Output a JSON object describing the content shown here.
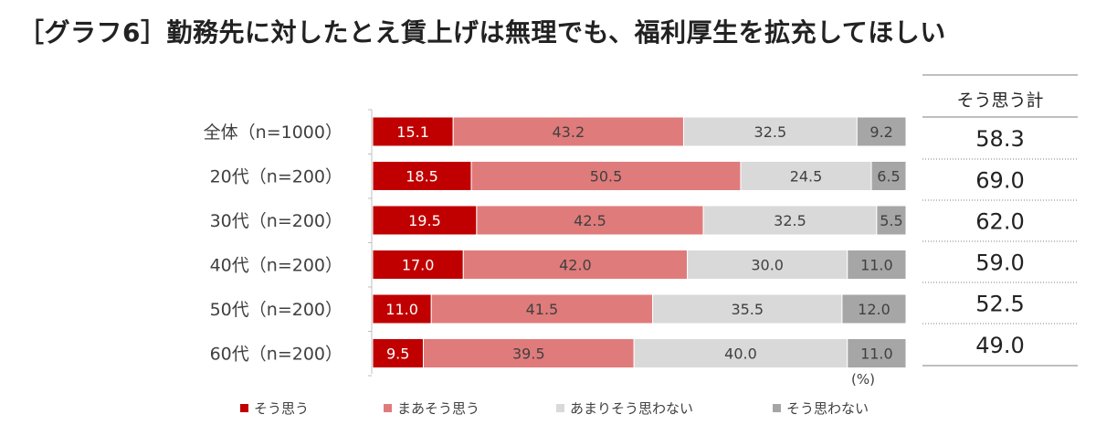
{
  "title": "［グラフ6］勤務先に対したとえ賃上げは無理でも、福利厚生を拡充してほしい",
  "chart_data": {
    "type": "bar",
    "orientation": "horizontal",
    "stacked": true,
    "normalized_percent": true,
    "categories": [
      "全体（n=1000）",
      "20代（n=200）",
      "30代（n=200）",
      "40代（n=200）",
      "50代（n=200）",
      "60代（n=200）"
    ],
    "series": [
      {
        "name": "そう思う",
        "color": "#c00000",
        "label_color": "#ffffff",
        "values": [
          15.1,
          18.5,
          19.5,
          17.0,
          11.0,
          9.5
        ]
      },
      {
        "name": "まあそう思う",
        "color": "#e07b7b",
        "label_color": "#404040",
        "values": [
          43.2,
          50.5,
          42.5,
          42.0,
          41.5,
          39.5
        ]
      },
      {
        "name": "あまりそう思わない",
        "color": "#d9d9d9",
        "label_color": "#404040",
        "values": [
          32.5,
          24.5,
          32.5,
          30.0,
          35.5,
          40.0
        ]
      },
      {
        "name": "そう思わない",
        "color": "#a6a6a6",
        "label_color": "#404040",
        "values": [
          9.2,
          6.5,
          5.5,
          11.0,
          12.0,
          11.0
        ]
      }
    ],
    "value_labels": [
      [
        "15.1",
        "43.2",
        "32.5",
        "9.2"
      ],
      [
        "18.5",
        "50.5",
        "24.5",
        "6.5"
      ],
      [
        "19.5",
        "42.5",
        "32.5",
        "5.5"
      ],
      [
        "17.0",
        "42.0",
        "30.0",
        "11.0"
      ],
      [
        "11.0",
        "41.5",
        "35.5",
        "12.0"
      ],
      [
        "9.5",
        "39.5",
        "40.0",
        "11.0"
      ]
    ],
    "unit_label": "(%)",
    "xlim": [
      0,
      100
    ],
    "totals": {
      "header": "そう思う計",
      "values": [
        "58.3",
        "69.0",
        "62.0",
        "59.0",
        "52.5",
        "49.0"
      ]
    },
    "legend_position": "bottom"
  }
}
